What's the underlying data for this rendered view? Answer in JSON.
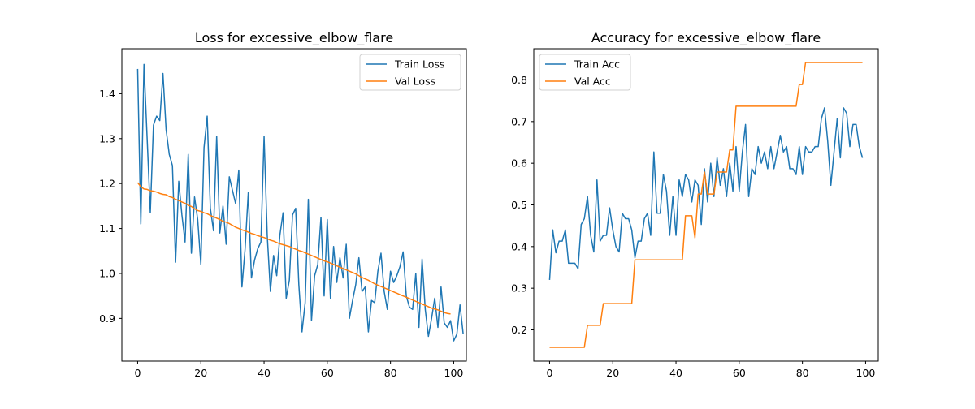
{
  "chart_data": [
    {
      "type": "line",
      "title": "Loss for excessive_elbow_flare",
      "xlabel": "",
      "ylabel": "",
      "xlim": [
        -5,
        104
      ],
      "ylim": [
        0.805,
        1.5
      ],
      "xticks": [
        0,
        20,
        40,
        60,
        80,
        100
      ],
      "yticks": [
        0.9,
        1.0,
        1.1,
        1.2,
        1.3,
        1.4
      ],
      "ytick_labels": [
        "0.9",
        "1.0",
        "1.1",
        "1.2",
        "1.3",
        "1.4"
      ],
      "legend_position": "top-right",
      "series": [
        {
          "name": "Train Loss",
          "color": "#1f77b4",
          "values": [
            1.455,
            1.11,
            1.465,
            1.3,
            1.135,
            1.33,
            1.35,
            1.34,
            1.445,
            1.32,
            1.265,
            1.24,
            1.025,
            1.205,
            1.13,
            1.07,
            1.265,
            1.045,
            1.17,
            1.12,
            1.02,
            1.28,
            1.35,
            1.145,
            1.095,
            1.305,
            1.09,
            1.15,
            1.065,
            1.215,
            1.185,
            1.155,
            1.23,
            0.97,
            1.055,
            1.18,
            0.99,
            1.03,
            1.055,
            1.07,
            1.305,
            1.085,
            0.96,
            1.04,
            0.995,
            1.085,
            1.135,
            0.945,
            0.985,
            1.13,
            1.145,
            0.975,
            0.87,
            0.935,
            1.165,
            0.895,
            0.995,
            1.02,
            1.125,
            0.95,
            1.12,
            0.945,
            1.06,
            0.98,
            1.035,
            0.99,
            1.065,
            0.9,
            0.94,
            0.975,
            1.035,
            0.96,
            0.97,
            0.87,
            0.94,
            0.935,
            1.005,
            1.045,
            0.96,
            0.92,
            1.005,
            0.98,
            0.995,
            1.015,
            1.048,
            0.95,
            0.925,
            0.92,
            1.0,
            0.88,
            1.032,
            0.92,
            0.86,
            0.9,
            0.945,
            0.88,
            0.97,
            0.89,
            0.88,
            0.895,
            0.85,
            0.865,
            0.93,
            0.865
          ]
        },
        {
          "name": "Val Loss",
          "color": "#ff7f0e",
          "values": [
            1.202,
            1.193,
            1.188,
            1.187,
            1.184,
            1.183,
            1.181,
            1.178,
            1.176,
            1.175,
            1.171,
            1.169,
            1.165,
            1.162,
            1.159,
            1.156,
            1.152,
            1.149,
            1.144,
            1.14,
            1.138,
            1.135,
            1.133,
            1.129,
            1.126,
            1.123,
            1.12,
            1.116,
            1.114,
            1.111,
            1.107,
            1.103,
            1.1,
            1.097,
            1.095,
            1.092,
            1.089,
            1.087,
            1.084,
            1.082,
            1.08,
            1.077,
            1.074,
            1.072,
            1.069,
            1.066,
            1.064,
            1.062,
            1.06,
            1.057,
            1.054,
            1.051,
            1.049,
            1.046,
            1.043,
            1.04,
            1.037,
            1.034,
            1.031,
            1.028,
            1.026,
            1.023,
            1.02,
            1.017,
            1.014,
            1.011,
            1.008,
            1.005,
            1.002,
            0.999,
            0.995,
            0.991,
            0.988,
            0.985,
            0.981,
            0.977,
            0.974,
            0.971,
            0.968,
            0.965,
            0.962,
            0.959,
            0.956,
            0.953,
            0.95,
            0.947,
            0.944,
            0.941,
            0.938,
            0.935,
            0.932,
            0.929,
            0.926,
            0.923,
            0.921,
            0.919,
            0.916,
            0.913,
            0.911,
            0.91
          ]
        }
      ]
    },
    {
      "type": "line",
      "title": "Accuracy for excessive_elbow_flare",
      "xlabel": "",
      "ylabel": "",
      "xlim": [
        -5,
        104
      ],
      "ylim": [
        0.125,
        0.875
      ],
      "xticks": [
        0,
        20,
        40,
        60,
        80,
        100
      ],
      "yticks": [
        0.2,
        0.3,
        0.4,
        0.5,
        0.6,
        0.7,
        0.8
      ],
      "ytick_labels": [
        "0.2",
        "0.3",
        "0.4",
        "0.5",
        "0.6",
        "0.7",
        "0.8"
      ],
      "legend_position": "top-left",
      "series": [
        {
          "name": "Train Acc",
          "color": "#1f77b4",
          "values": [
            0.32,
            0.44,
            0.385,
            0.413,
            0.413,
            0.44,
            0.36,
            0.36,
            0.36,
            0.347,
            0.453,
            0.467,
            0.52,
            0.427,
            0.387,
            0.56,
            0.413,
            0.427,
            0.427,
            0.493,
            0.44,
            0.4,
            0.387,
            0.48,
            0.467,
            0.467,
            0.44,
            0.373,
            0.413,
            0.413,
            0.467,
            0.48,
            0.427,
            0.627,
            0.48,
            0.48,
            0.573,
            0.533,
            0.427,
            0.52,
            0.427,
            0.56,
            0.52,
            0.573,
            0.56,
            0.507,
            0.56,
            0.547,
            0.453,
            0.587,
            0.507,
            0.6,
            0.52,
            0.613,
            0.547,
            0.587,
            0.52,
            0.6,
            0.533,
            0.64,
            0.533,
            0.627,
            0.693,
            0.52,
            0.587,
            0.573,
            0.64,
            0.6,
            0.627,
            0.587,
            0.64,
            0.587,
            0.627,
            0.667,
            0.627,
            0.64,
            0.587,
            0.587,
            0.573,
            0.64,
            0.573,
            0.64,
            0.627,
            0.627,
            0.64,
            0.64,
            0.707,
            0.733,
            0.653,
            0.547,
            0.627,
            0.707,
            0.613,
            0.733,
            0.72,
            0.64,
            0.693,
            0.693,
            0.64,
            0.613
          ]
        },
        {
          "name": "Val Acc",
          "color": "#ff7f0e",
          "values": [
            0.158,
            0.158,
            0.158,
            0.158,
            0.158,
            0.158,
            0.158,
            0.158,
            0.158,
            0.158,
            0.158,
            0.158,
            0.211,
            0.211,
            0.211,
            0.211,
            0.211,
            0.263,
            0.263,
            0.263,
            0.263,
            0.263,
            0.263,
            0.263,
            0.263,
            0.263,
            0.263,
            0.368,
            0.368,
            0.368,
            0.368,
            0.368,
            0.368,
            0.368,
            0.368,
            0.368,
            0.368,
            0.368,
            0.368,
            0.368,
            0.368,
            0.368,
            0.368,
            0.474,
            0.474,
            0.474,
            0.421,
            0.526,
            0.526,
            0.579,
            0.526,
            0.526,
            0.526,
            0.579,
            0.579,
            0.579,
            0.579,
            0.632,
            0.632,
            0.737,
            0.737,
            0.737,
            0.737,
            0.737,
            0.737,
            0.737,
            0.737,
            0.737,
            0.737,
            0.737,
            0.737,
            0.737,
            0.737,
            0.737,
            0.737,
            0.737,
            0.737,
            0.737,
            0.737,
            0.789,
            0.789,
            0.842,
            0.842,
            0.842,
            0.842,
            0.842,
            0.842,
            0.842,
            0.842,
            0.842,
            0.842,
            0.842,
            0.842,
            0.842,
            0.842,
            0.842,
            0.842,
            0.842,
            0.842,
            0.842
          ]
        }
      ]
    }
  ]
}
